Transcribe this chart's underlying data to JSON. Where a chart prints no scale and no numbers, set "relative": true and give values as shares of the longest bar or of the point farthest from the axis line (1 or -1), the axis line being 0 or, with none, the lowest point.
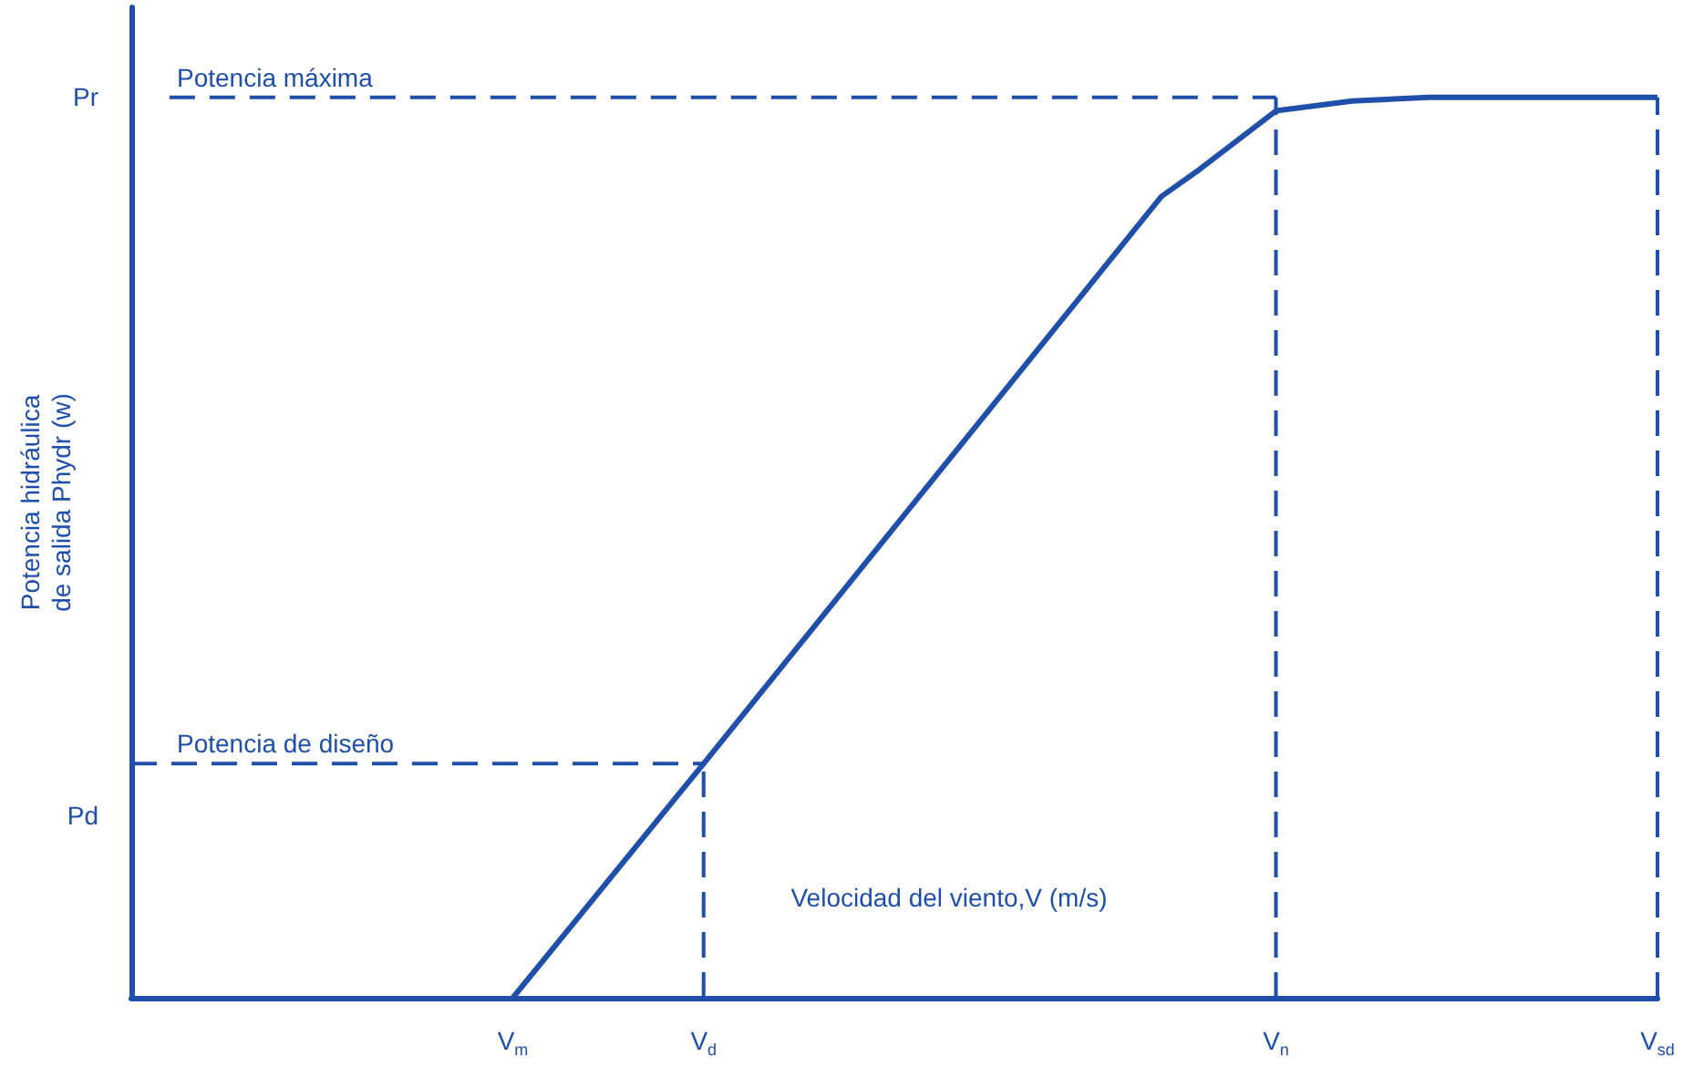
{
  "chart_data": {
    "type": "line",
    "relative": true,
    "xlabel": "Velocidad del viento,V (m/s)",
    "ylabel": "Potencia hidráulica\nde salida Phydr (w)",
    "categories": [
      null,
      null,
      null,
      null,
      null,
      null,
      null,
      null,
      null,
      null,
      "V$_{m}$",
      null,
      null,
      null,
      null,
      "V$_{d}$",
      null,
      null,
      null,
      null,
      null,
      null,
      null,
      null,
      null,
      null,
      null,
      null,
      null,
      null,
      "V$_{n}$",
      null,
      null,
      null,
      null,
      null,
      null,
      null,
      null,
      null,
      "V$_{sd}$"
    ],
    "series": [
      {
        "color": "#1f4fa8",
        "line_style": "solid",
        "values": [
          null,
          null,
          null,
          null,
          null,
          null,
          null,
          null,
          null,
          null,
          0,
          null,
          null,
          null,
          null,
          0.26,
          null,
          null,
          null,
          null,
          null,
          null,
          null,
          null,
          null,
          null,
          null,
          0.89,
          0.92,
          null,
          0.985,
          null,
          0.996,
          null,
          1,
          null,
          null,
          null,
          null,
          null,
          1
        ]
      },
      {
        "color": "#1f4fa8",
        "line_style": "dashed",
        "values": [
          0.26,
          null,
          null,
          null,
          null,
          null,
          null,
          null,
          null,
          null,
          null,
          null,
          null,
          null,
          null,
          0.26,
          null,
          null,
          null,
          null,
          null,
          null,
          null,
          null,
          null,
          null,
          null,
          null,
          null,
          null,
          null,
          null,
          null,
          null,
          null,
          null,
          null,
          null,
          null,
          null,
          null
        ]
      },
      {
        "color": "#1f4fa8",
        "line_style": "dashed",
        "x": [
          "V$_{d}$",
          "V$_{d}$"
        ],
        "values": [
          0,
          0.26
        ]
      },
      {
        "color": "#1f4fa8",
        "line_style": "dashed",
        "values": [
          null,
          1,
          null,
          null,
          null,
          null,
          null,
          null,
          null,
          null,
          null,
          null,
          null,
          null,
          null,
          null,
          null,
          null,
          null,
          null,
          null,
          null,
          null,
          null,
          null,
          null,
          null,
          null,
          null,
          null,
          1,
          null,
          null,
          null,
          null,
          null,
          null,
          null,
          null,
          null,
          null
        ]
      },
      {
        "color": "#1f4fa8",
        "line_style": "dashed",
        "x": [
          "V$_{n}$",
          "V$_{n}$"
        ],
        "values": [
          0,
          1
        ]
      },
      {
        "color": "#1f4fa8",
        "line_style": "dashed",
        "x": [
          "V$_{sd}$",
          "V$_{sd}$"
        ],
        "values": [
          0,
          1
        ]
      }
    ],
    "annotations": [
      {
        "text": "Potencia máxima",
        "y": 1
      },
      {
        "text": "Potencia de diseño",
        "y": 0.26
      },
      "Pr",
      "Pd"
    ],
    "marker": "none"
  }
}
